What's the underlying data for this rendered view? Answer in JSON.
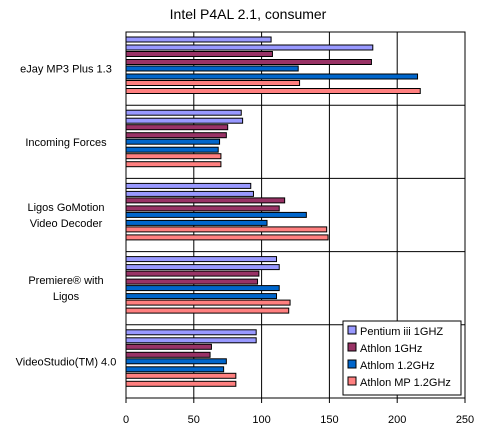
{
  "chart_data": {
    "type": "bar",
    "orientation": "horizontal",
    "title": "Intel P4AL 2.1, consumer",
    "categories": [
      "eJay MP3 Plus 1.3",
      "Incoming Forces",
      "Ligos GoMotion Video Decoder",
      "Premiere® with Ligos",
      "VideoStudio(TM) 4.0"
    ],
    "category_label_lines": [
      [
        "eJay MP3 Plus 1.3"
      ],
      [
        "Incoming Forces"
      ],
      [
        "Ligos GoMotion",
        "Video Decoder"
      ],
      [
        "Premiere® with",
        "Ligos"
      ],
      [
        "VideoStudio(TM) 4.0"
      ]
    ],
    "series": [
      {
        "name": "Pentium iii  1GHZ",
        "color": "#9999ff",
        "values": [
          [
            107,
            182
          ],
          [
            85,
            86
          ],
          [
            92,
            94
          ],
          [
            111,
            113
          ],
          [
            96,
            96
          ]
        ]
      },
      {
        "name": "Athlon 1GHz",
        "color": "#993366",
        "values": [
          [
            108,
            181
          ],
          [
            75,
            74
          ],
          [
            117,
            113
          ],
          [
            98,
            97
          ],
          [
            63,
            62
          ]
        ]
      },
      {
        "name": "Athlom 1.2GHz",
        "color": "#0066cc",
        "values": [
          [
            127,
            215
          ],
          [
            69,
            68
          ],
          [
            133,
            104
          ],
          [
            113,
            111
          ],
          [
            74,
            72
          ]
        ]
      },
      {
        "name": "Athlon MP 1.2GHz",
        "color": "#ff8080",
        "values": [
          [
            128,
            217
          ],
          [
            70,
            70
          ],
          [
            148,
            149
          ],
          [
            121,
            120
          ],
          [
            81,
            81
          ]
        ]
      }
    ],
    "xlim": [
      0,
      250
    ],
    "x_ticks": [
      0,
      50,
      100,
      150,
      200,
      250
    ],
    "grid": true,
    "legend_position": "bottom-right",
    "plot_background": "#ffffff",
    "bar_outline": "#000000"
  }
}
